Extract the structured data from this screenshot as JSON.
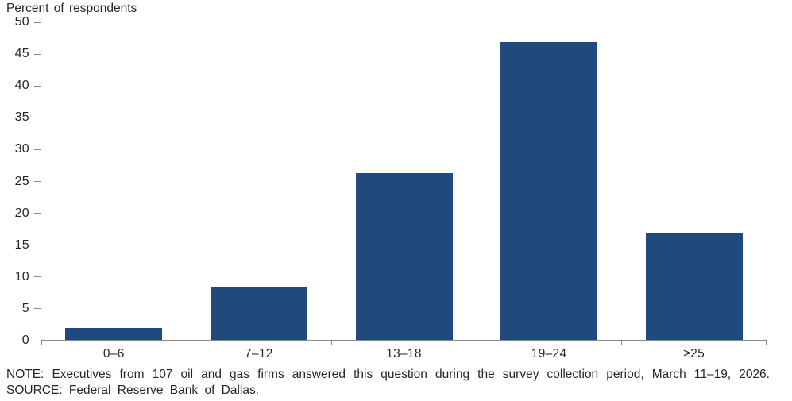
{
  "chart_data": {
    "type": "bar",
    "ylabel": "Percent of respondents",
    "categories": [
      "0–6",
      "7–12",
      "13–18",
      "19–24",
      "≥25"
    ],
    "values": [
      1.9,
      8.4,
      26.2,
      46.7,
      16.8
    ],
    "ylim": [
      0,
      50
    ],
    "ytick_step": 5,
    "grid": false,
    "legend_position": "none",
    "bar_color": "#1F4A7D",
    "axis_color": "#8A8A8A",
    "text_color": "#262626"
  },
  "footer": {
    "note": "NOTE: Executives from 107 oil and gas firms answered this question during the survey collection period, March 11–19, 2026.",
    "source": "SOURCE: Federal Reserve Bank of Dallas."
  }
}
